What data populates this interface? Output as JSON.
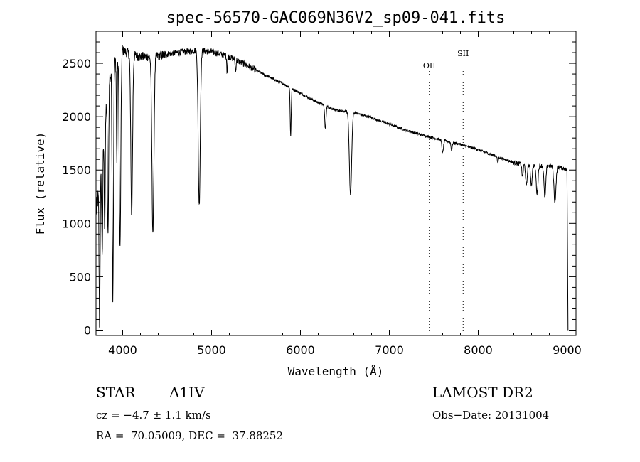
{
  "chart_data": {
    "type": "line",
    "title": "spec-56570-GAC069N36V2_sp09-041.fits",
    "xlabel": "Wavelength (Å)",
    "ylabel": "Flux (relative)",
    "xlim": [
      3700,
      9100
    ],
    "ylim": [
      -50,
      2800
    ],
    "xticks": [
      4000,
      5000,
      6000,
      7000,
      8000,
      9000
    ],
    "yticks": [
      0,
      500,
      1000,
      1500,
      2000,
      2500
    ],
    "grid": false,
    "lines": [
      {
        "label": "OII",
        "x": 7450
      },
      {
        "label": "SII",
        "x": 7830
      }
    ],
    "continuum": [
      [
        3700,
        1100
      ],
      [
        3760,
        1500
      ],
      [
        3800,
        2000
      ],
      [
        3850,
        2350
      ],
      [
        3900,
        2480
      ],
      [
        3950,
        2560
      ],
      [
        4000,
        2620
      ],
      [
        4100,
        2580
      ],
      [
        4200,
        2560
      ],
      [
        4400,
        2570
      ],
      [
        4600,
        2600
      ],
      [
        4800,
        2620
      ],
      [
        5000,
        2610
      ],
      [
        5200,
        2560
      ],
      [
        5400,
        2480
      ],
      [
        5600,
        2390
      ],
      [
        5800,
        2310
      ],
      [
        6000,
        2220
      ],
      [
        6200,
        2130
      ],
      [
        6400,
        2060
      ],
      [
        6600,
        2040
      ],
      [
        6800,
        1990
      ],
      [
        7000,
        1930
      ],
      [
        7200,
        1870
      ],
      [
        7400,
        1820
      ],
      [
        7600,
        1780
      ],
      [
        7800,
        1740
      ],
      [
        8000,
        1690
      ],
      [
        8200,
        1630
      ],
      [
        8400,
        1570
      ],
      [
        8600,
        1540
      ],
      [
        8800,
        1540
      ],
      [
        8950,
        1520
      ],
      [
        9000,
        1500
      ],
      [
        9010,
        0
      ]
    ],
    "absorption": [
      {
        "x": 3740,
        "depth": 1300,
        "w": 8
      },
      {
        "x": 3770,
        "depth": 900,
        "w": 8
      },
      {
        "x": 3798,
        "depth": 1000,
        "w": 8
      },
      {
        "x": 3835,
        "depth": 1400,
        "w": 9
      },
      {
        "x": 3889,
        "depth": 2100,
        "w": 10
      },
      {
        "x": 3934,
        "depth": 1000,
        "w": 6
      },
      {
        "x": 3970,
        "depth": 1850,
        "w": 12
      },
      {
        "x": 4101,
        "depth": 1500,
        "w": 14
      },
      {
        "x": 4340,
        "depth": 1650,
        "w": 16
      },
      {
        "x": 4861,
        "depth": 1450,
        "w": 16
      },
      {
        "x": 5175,
        "depth": 150,
        "w": 6
      },
      {
        "x": 5270,
        "depth": 120,
        "w": 6
      },
      {
        "x": 5890,
        "depth": 450,
        "w": 8
      },
      {
        "x": 6280,
        "depth": 220,
        "w": 10
      },
      {
        "x": 6563,
        "depth": 780,
        "w": 18
      },
      {
        "x": 7600,
        "depth": 120,
        "w": 12
      },
      {
        "x": 7700,
        "depth": 70,
        "w": 10
      },
      {
        "x": 8220,
        "depth": 60,
        "w": 8
      },
      {
        "x": 8498,
        "depth": 120,
        "w": 10
      },
      {
        "x": 8542,
        "depth": 200,
        "w": 12
      },
      {
        "x": 8598,
        "depth": 180,
        "w": 12
      },
      {
        "x": 8662,
        "depth": 260,
        "w": 14
      },
      {
        "x": 8750,
        "depth": 300,
        "w": 14
      },
      {
        "x": 8863,
        "depth": 330,
        "w": 16
      }
    ]
  },
  "info": {
    "object_type": "STAR",
    "subclass": "A1IV",
    "survey": "LAMOST DR2",
    "cz": "cz = −4.7 ± 1.1 km/s",
    "obs_date": "Obs−Date: 20131004",
    "coords": "RA =  70.05009, DEC =  37.88252"
  }
}
